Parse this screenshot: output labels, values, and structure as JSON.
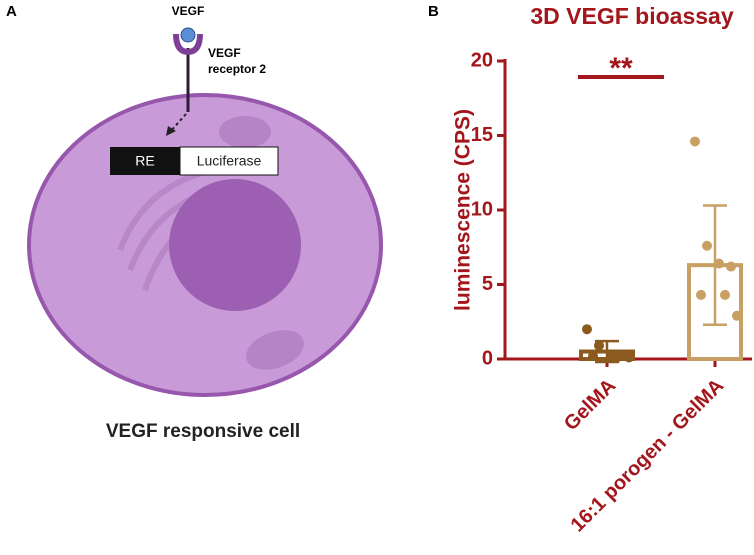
{
  "diagram": {
    "panel_label": "A",
    "ligand_label": "VEGF",
    "receptor_label": [
      "VEGF",
      "receptor 2"
    ],
    "element_box": "RE",
    "reporter_box": "Luciferase",
    "caption": "VEGF responsive cell"
  },
  "chart_data": {
    "type": "bar",
    "panel_label": "B",
    "title": "3D VEGF bioassay",
    "y_label": "luminescence (CPS)",
    "categories": [
      "GelMA",
      "16:1 porogen - GelMA"
    ],
    "values": [
      0.5,
      6.3
    ],
    "errors": [
      0.7,
      4.0
    ],
    "colors": [
      "#8b5a1e",
      "#c9a063"
    ],
    "points": [
      [
        2.0,
        0.9,
        0.3,
        0.2,
        0.2,
        0.1,
        0.1
      ],
      [
        14.6,
        7.6,
        6.4,
        6.2,
        4.3,
        4.3,
        2.9
      ]
    ],
    "ylim": [
      0,
      20
    ],
    "yticks": [
      0,
      5,
      10,
      15,
      20
    ],
    "significance": "**",
    "text_color": "#a3161c"
  }
}
